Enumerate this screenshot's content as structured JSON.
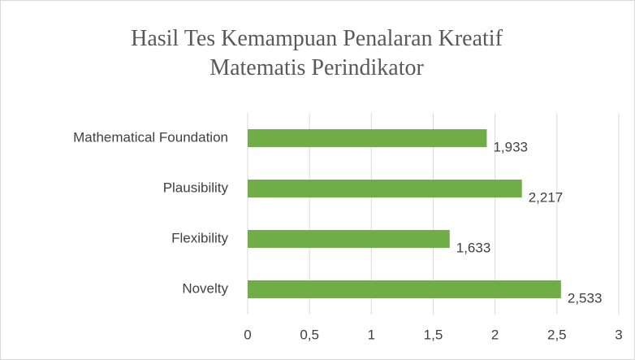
{
  "chart_data": {
    "type": "bar",
    "orientation": "horizontal",
    "title": "Hasil Tes Kemampuan Penalaran Kreatif Matematis Perindikator",
    "categories": [
      "Mathematical Foundation",
      "Plausibility",
      "Flexibility",
      "Novelty"
    ],
    "values": [
      1.933,
      2.217,
      1.633,
      2.533
    ],
    "value_labels": [
      "1,933",
      "2,217",
      "1,633",
      "2,533"
    ],
    "color": "#70ad47",
    "xlim": [
      0,
      3
    ],
    "xticks": [
      0,
      {
        "value": 0.5,
        "label": "0,5"
      },
      1,
      {
        "value": 1.5,
        "label": "1,5"
      },
      2,
      {
        "value": 2.5,
        "label": "2,5"
      },
      3
    ],
    "grid": true
  }
}
